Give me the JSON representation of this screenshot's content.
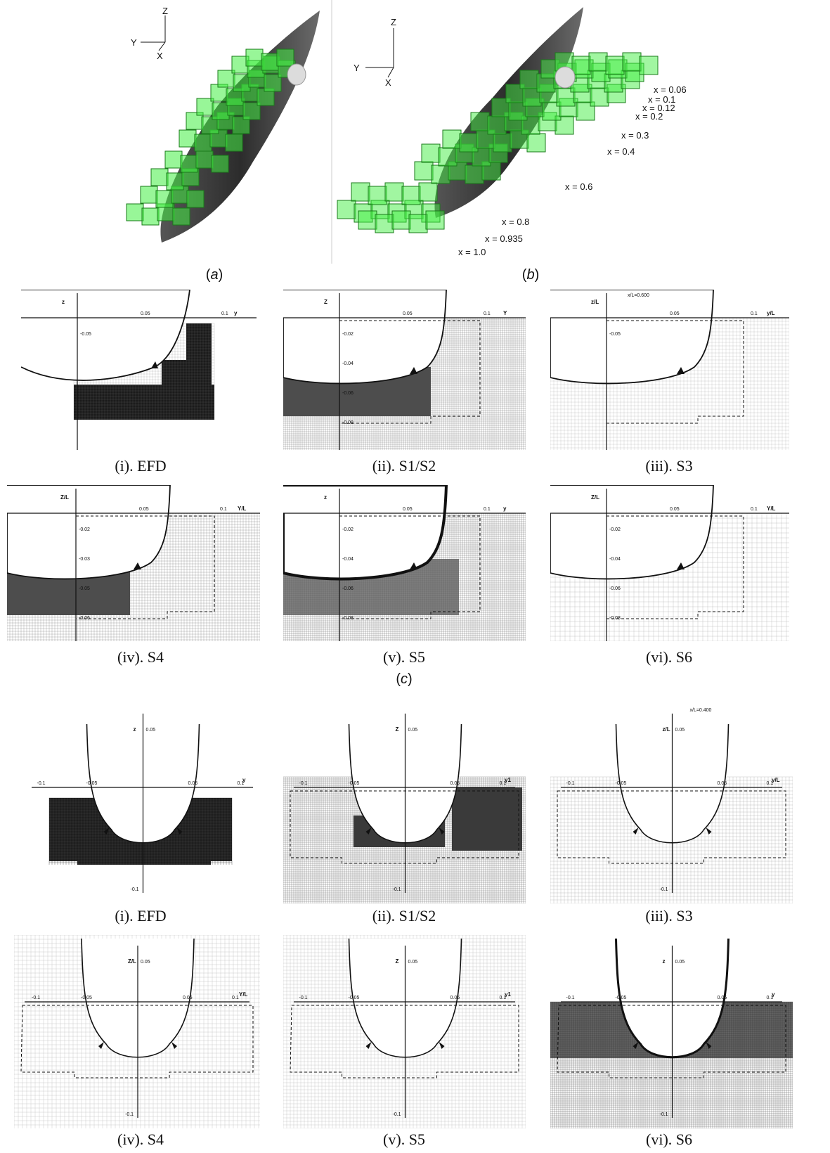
{
  "figure_a": {
    "caption_letter": "a",
    "axes": {
      "y": "Y",
      "z": "Z",
      "x": "X"
    }
  },
  "figure_b": {
    "caption_letter": "b",
    "axes": {
      "y": "Y",
      "z": "Z",
      "x": "X"
    },
    "station_labels": [
      "x = 0.06",
      "x = 0.1",
      "x = 0.12",
      "x = 0.2",
      "x = 0.3",
      "x = 0.4",
      "x = 0.6",
      "x = 0.8",
      "x = 0.935",
      "x = 1.0"
    ]
  },
  "figure_c": {
    "caption_letter": "c",
    "panels": [
      {
        "caption": "(i). EFD",
        "zlabel": "z",
        "ylabel": "y",
        "ticks": [
          "0.05",
          "0.1"
        ],
        "vticks": [
          "-0.05"
        ],
        "header": ""
      },
      {
        "caption": "(ii). S1/S2",
        "zlabel": "Z",
        "ylabel": "Y",
        "ticks": [
          "0.05",
          "0.1"
        ],
        "vticks": [
          "-0.02",
          "-0.04",
          "-0.06",
          "-0.08"
        ],
        "header": ""
      },
      {
        "caption": "(iii). S3",
        "zlabel": "z/L",
        "ylabel": "y/L",
        "ticks": [
          "0.05",
          "0.1"
        ],
        "vticks": [
          "-0.05"
        ],
        "header": "x/L=0.600"
      },
      {
        "caption": "(iv). S4",
        "zlabel": "Z/L",
        "ylabel": "Y/L",
        "ticks": [
          "0.05",
          "0.1"
        ],
        "vticks": [
          "-0.02",
          "-0.03",
          "-0.05",
          "-0.06"
        ],
        "header": ""
      },
      {
        "caption": "(v). S5",
        "zlabel": "z",
        "ylabel": "y",
        "ticks": [
          "0.05",
          "0.1"
        ],
        "vticks": [
          "-0.02",
          "-0.04",
          "-0.06",
          "-0.08"
        ],
        "header": ""
      },
      {
        "caption": "(vi). S6",
        "zlabel": "Z/L",
        "ylabel": "Y/L",
        "ticks": [
          "0.05",
          "0.1"
        ],
        "vticks": [
          "-0.02",
          "-0.04",
          "-0.06",
          "-0.08"
        ],
        "header": ""
      }
    ]
  },
  "figure_d": {
    "panels": [
      {
        "caption": "(i). EFD",
        "zlabel": "z",
        "ylabel": "y",
        "hticks": [
          "-0.1",
          "-0.05",
          "0.05",
          "0.1"
        ],
        "vtop": "0.05",
        "vbot": "-0.1",
        "header": ""
      },
      {
        "caption": "(ii). S1/S2",
        "zlabel": "Z",
        "ylabel": "y1",
        "hticks": [
          "-0.1",
          "-0.05",
          "0.05",
          "0.1"
        ],
        "vtop": "0.05",
        "vbot": "-0.1",
        "header": ""
      },
      {
        "caption": "(iii). S3",
        "zlabel": "z/L",
        "ylabel": "y/L",
        "hticks": [
          "-0.1",
          "-0.05",
          "0.05",
          "0.1"
        ],
        "vtop": "0.05",
        "vbot": "-0.1",
        "header": "x/L=0.400"
      },
      {
        "caption": "(iv). S4",
        "zlabel": "Z/L",
        "ylabel": "Y/L",
        "hticks": [
          "-0.1",
          "-0.05",
          "0.05",
          "0.1"
        ],
        "vtop": "0.05",
        "vbot": "-0.1",
        "header": ""
      },
      {
        "caption": "(v). S5",
        "zlabel": "Z",
        "ylabel": "y1",
        "hticks": [
          "-0.1",
          "-0.05",
          "0.05",
          "0.1"
        ],
        "vtop": "0.05",
        "vbot": "-0.1",
        "header": ""
      },
      {
        "caption": "(vi). S6",
        "zlabel": "z",
        "ylabel": "y",
        "hticks": [
          "-0.1",
          "-0.05",
          "0.05",
          "0.1"
        ],
        "vtop": "0.05",
        "vbot": "-0.1",
        "header": ""
      }
    ]
  },
  "colors": {
    "hull": "#3c3c3c",
    "grid_green": "#33dd33",
    "mesh_dark": "#2f2f2f",
    "mesh_light": "#bdbdbd"
  }
}
